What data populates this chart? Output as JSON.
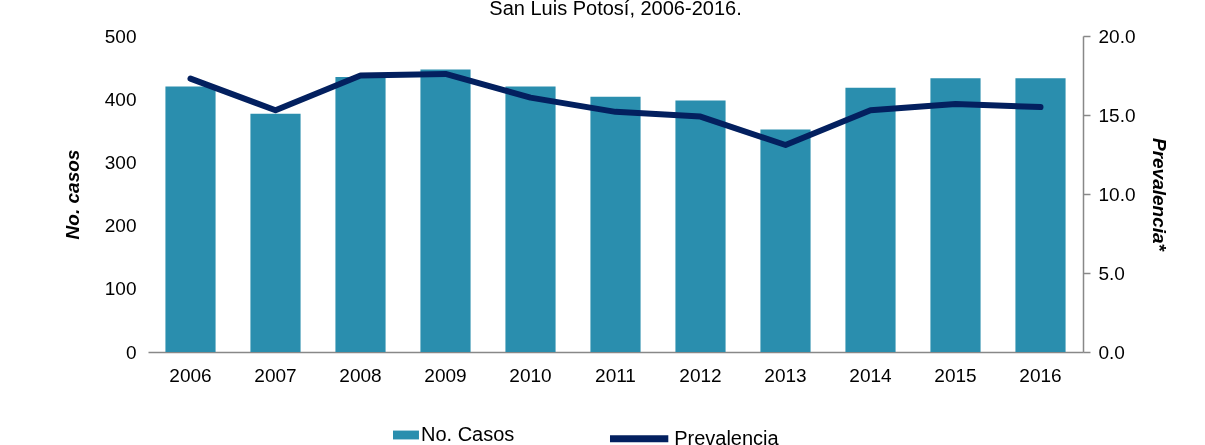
{
  "chart_data": {
    "type": "bar",
    "title": "San Luis Potosí, 2006-2016.",
    "ylabel": "No. casos",
    "y2label": "Prevalencia*",
    "categories": [
      "2006",
      "2007",
      "2008",
      "2009",
      "2010",
      "2011",
      "2012",
      "2013",
      "2014",
      "2015",
      "2016"
    ],
    "ylim": [
      0,
      500
    ],
    "yticks": [
      0,
      100,
      200,
      300,
      400,
      500
    ],
    "y2lim": [
      0,
      20
    ],
    "y2ticks": [
      {
        "value": 0,
        "label": "0.0"
      },
      {
        "value": 5,
        "label": "5.0"
      },
      {
        "value": 10,
        "label": "10.0"
      },
      {
        "value": 15,
        "label": "15.0"
      },
      {
        "value": 20,
        "label": "20.0"
      }
    ],
    "legend": "bottom",
    "series": [
      {
        "name": "No. Casos",
        "color": "#2a8eae",
        "values": [
          420,
          377,
          435,
          447,
          420,
          404,
          398,
          352,
          418,
          433,
          433
        ]
      },
      {
        "name": "Prevalencia",
        "type": "line",
        "axis": "y2",
        "color": "#03205f",
        "line_style": "solid",
        "values": [
          17.3,
          15.3,
          17.5,
          17.6,
          16.1,
          15.2,
          14.9,
          13.1,
          15.3,
          15.7,
          15.5
        ]
      }
    ]
  }
}
